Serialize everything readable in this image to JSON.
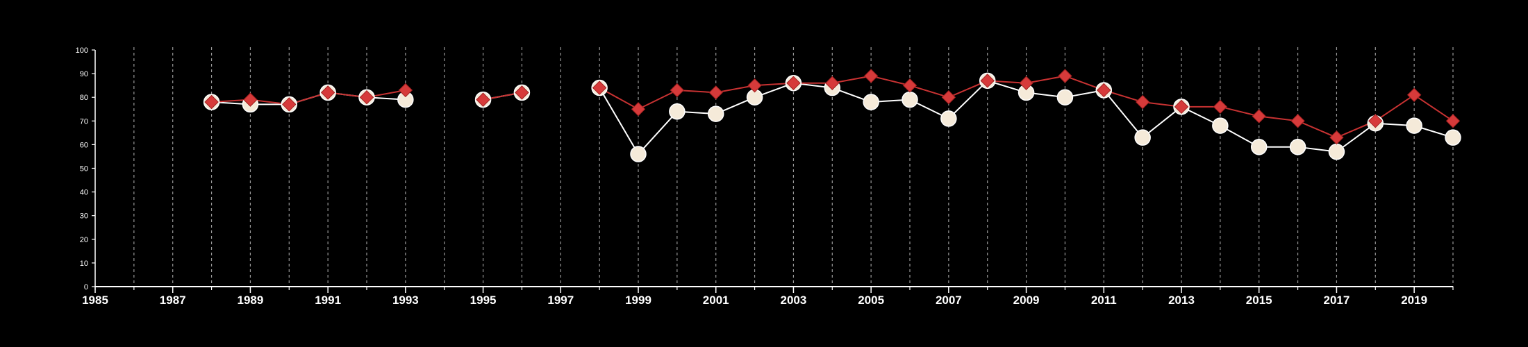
{
  "chart_data": {
    "type": "line",
    "title": "",
    "xlabel": "",
    "ylabel": "",
    "xlim": [
      1985,
      2020
    ],
    "ylim": [
      0,
      100
    ],
    "x_ticks": [
      1985,
      1987,
      1989,
      1991,
      1993,
      1995,
      1997,
      1999,
      2001,
      2003,
      2005,
      2007,
      2009,
      2011,
      2013,
      2015,
      2017,
      2019
    ],
    "y_ticks": [
      0,
      10,
      20,
      30,
      40,
      50,
      60,
      70,
      80,
      90,
      100
    ],
    "vertical_gridlines": "dashed at every year",
    "legend": "none",
    "series": [
      {
        "marker": "circle",
        "color": "#f5ead9",
        "line_color": "#ffffff",
        "points": [
          [
            1988,
            78
          ],
          [
            1989,
            77
          ],
          [
            1990,
            77
          ],
          [
            1991,
            82
          ],
          [
            1992,
            80
          ],
          [
            1993,
            79
          ],
          [
            1995,
            79
          ],
          [
            1996,
            82
          ],
          [
            1998,
            84
          ],
          [
            1999,
            56
          ],
          [
            2000,
            74
          ],
          [
            2001,
            73
          ],
          [
            2002,
            80
          ],
          [
            2003,
            86
          ],
          [
            2004,
            84
          ],
          [
            2005,
            78
          ],
          [
            2006,
            79
          ],
          [
            2007,
            71
          ],
          [
            2008,
            87
          ],
          [
            2009,
            82
          ],
          [
            2010,
            80
          ],
          [
            2011,
            83
          ],
          [
            2012,
            63
          ],
          [
            2013,
            76
          ],
          [
            2014,
            68
          ],
          [
            2015,
            59
          ],
          [
            2016,
            59
          ],
          [
            2017,
            57
          ],
          [
            2018,
            69
          ],
          [
            2019,
            68
          ],
          [
            2020,
            63
          ]
        ]
      },
      {
        "marker": "diamond",
        "color": "#d63a3a",
        "line_color": "#c83232",
        "points": [
          [
            1988,
            78
          ],
          [
            1989,
            79
          ],
          [
            1990,
            77
          ],
          [
            1991,
            82
          ],
          [
            1992,
            80
          ],
          [
            1993,
            83
          ],
          [
            1995,
            79
          ],
          [
            1996,
            82
          ],
          [
            1998,
            84
          ],
          [
            1999,
            75
          ],
          [
            2000,
            83
          ],
          [
            2001,
            82
          ],
          [
            2002,
            85
          ],
          [
            2003,
            86
          ],
          [
            2004,
            86
          ],
          [
            2005,
            89
          ],
          [
            2006,
            85
          ],
          [
            2007,
            80
          ],
          [
            2008,
            87
          ],
          [
            2009,
            86
          ],
          [
            2010,
            89
          ],
          [
            2011,
            83
          ],
          [
            2012,
            78
          ],
          [
            2013,
            76
          ],
          [
            2014,
            76
          ],
          [
            2015,
            72
          ],
          [
            2016,
            70
          ],
          [
            2017,
            63
          ],
          [
            2018,
            70
          ],
          [
            2019,
            81
          ],
          [
            2020,
            70
          ]
        ]
      }
    ]
  }
}
